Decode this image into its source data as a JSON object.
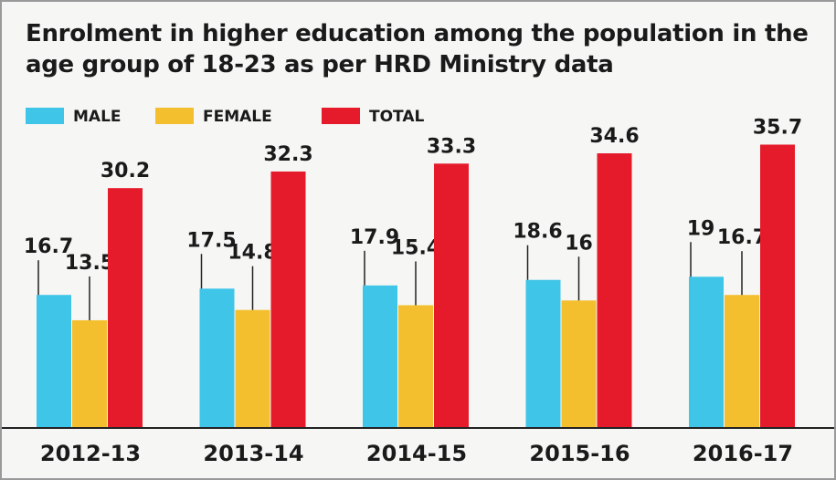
{
  "chart_data": {
    "type": "bar",
    "title": "Enrolment in higher education among the population in the age group of 18-23 as per HRD Ministry data",
    "categories": [
      "2012-13",
      "2013-14",
      "2014-15",
      "2015-16",
      "2016-17"
    ],
    "series": [
      {
        "name": "MALE",
        "color": "#3ec5e8",
        "values": [
          16.7,
          17.5,
          17.9,
          18.6,
          19
        ]
      },
      {
        "name": "FEMALE",
        "color": "#f4bf2e",
        "values": [
          13.5,
          14.8,
          15.4,
          16,
          16.7
        ]
      },
      {
        "name": "TOTAL",
        "color": "#e51b2b",
        "values": [
          30.2,
          32.3,
          33.3,
          34.6,
          35.7
        ]
      }
    ]
  }
}
